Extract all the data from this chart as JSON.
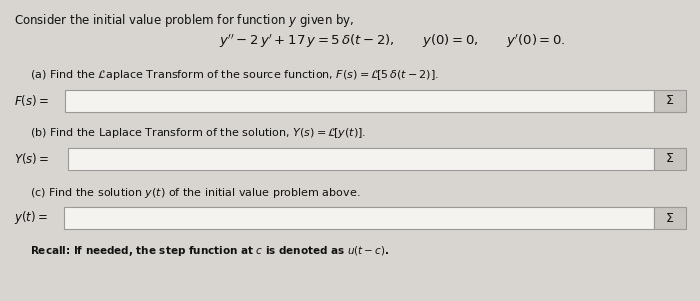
{
  "bg_color": "#d8d5d0",
  "title_text": "Consider the initial value problem for function $y$ given by,",
  "equation_main": "$y'' - 2\\,y' + 17\\,y = 5\\,\\delta(t-2), \\qquad y(0) = 0, \\qquad y'(0) = 0.$",
  "part_a_label": "(a) Find the $\\mathcal{L}$aplace Transform of the source function, $F(s) = \\mathcal{L}\\!\\left[5\\,\\delta(t-2)\\right].$",
  "part_a_var": "$F(s) = $",
  "part_b_label": "(b) Find the Laplace Transform of the solution, $Y(s) = \\mathcal{L}\\!\\left[y(t)\\right].$",
  "part_b_var": "$Y(s) = $",
  "part_c_label": "(c) Find the solution $y(t)$ of the initial value problem above.",
  "part_c_var": "$y(t) = $",
  "recall_text": "Recall: If needed, the step function at $c$ is denoted as $u(t-c)$.",
  "sigma_symbol": "$\\Sigma$",
  "box_bg": "#f5f3f0",
  "box_edge": "#999999",
  "sigma_bg": "#c8c5c0",
  "text_color": "#111111",
  "font_size_title": 8.5,
  "font_size_eq": 9.5,
  "font_size_part": 8.0,
  "font_size_var": 8.5,
  "font_size_sigma": 9.0,
  "font_size_recall": 7.5
}
